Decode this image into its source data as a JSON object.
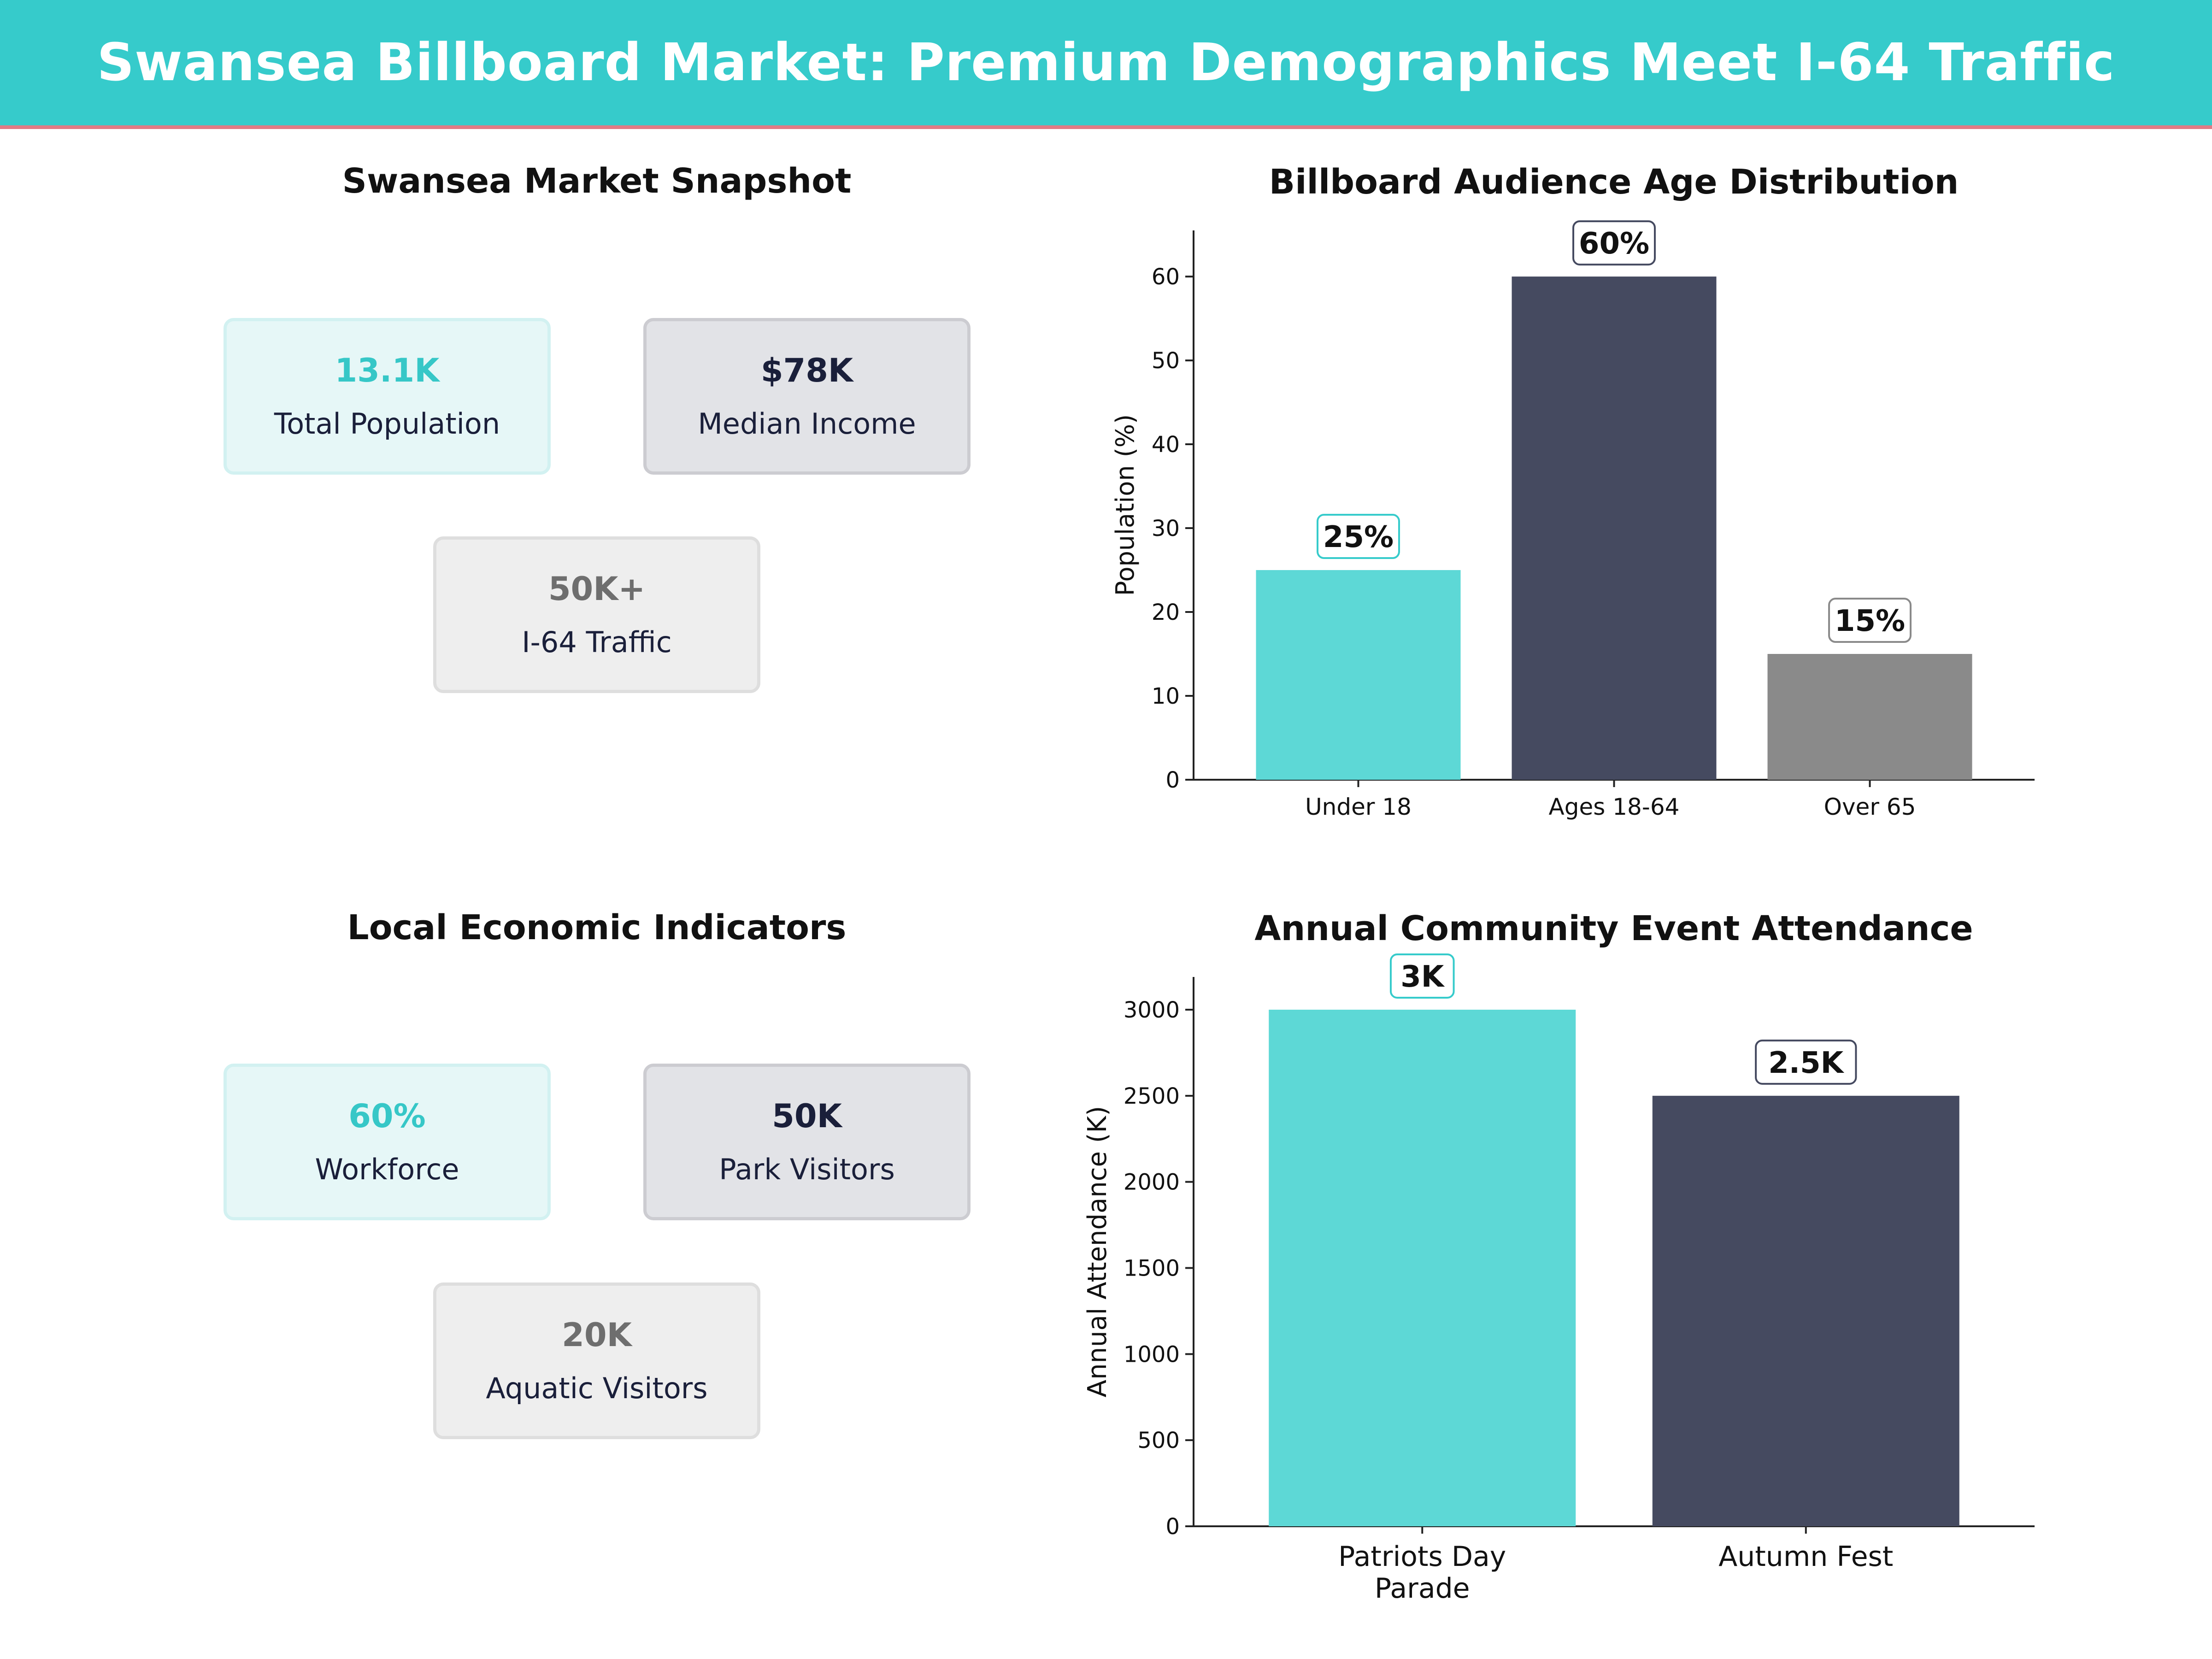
{
  "header": {
    "title": "Swansea Billboard Market: Premium Demographics Meet I-64 Traffic"
  },
  "snapshot": {
    "title": "Swansea Market Snapshot",
    "cards": [
      {
        "value": "13.1K",
        "label": "Total Population"
      },
      {
        "value": "$78K",
        "label": "Median Income"
      },
      {
        "value": "50K+",
        "label": "I-64 Traffic"
      }
    ]
  },
  "economic": {
    "title": "Local Economic Indicators",
    "cards": [
      {
        "value": "60%",
        "label": "Workforce"
      },
      {
        "value": "50K",
        "label": "Park Visitors"
      },
      {
        "value": "20K",
        "label": "Aquatic Visitors"
      }
    ]
  },
  "colors": {
    "teal": "#5DD8D6",
    "navy": "#454A60",
    "gray": "#8A8A8A",
    "banner": "#36CBCB",
    "accent_line": "#E07A85"
  },
  "chart_data": [
    {
      "type": "bar",
      "title": "Billboard Audience Age Distribution",
      "xlabel": "",
      "ylabel": "Population (%)",
      "categories": [
        "Under 18",
        "Ages 18-64",
        "Over 65"
      ],
      "values": [
        25,
        60,
        15
      ],
      "data_labels": [
        "25%",
        "60%",
        "15%"
      ],
      "bar_colors": [
        "#5DD8D6",
        "#454A60",
        "#8A8A8A"
      ],
      "label_border_colors": [
        "#36CBCB",
        "#454A60",
        "#8A8A8A"
      ],
      "yticks": [
        0,
        10,
        20,
        30,
        40,
        50,
        60
      ],
      "ylim": [
        0,
        65.5
      ],
      "grid": false
    },
    {
      "type": "bar",
      "title": "Annual Community Event Attendance",
      "xlabel": "",
      "ylabel": "Annual Attendance (K)",
      "categories": [
        "Patriots Day Parade",
        "Autumn Fest"
      ],
      "category_lines": [
        [
          "Patriots Day",
          "Parade"
        ],
        [
          "Autumn Fest"
        ]
      ],
      "values": [
        3000,
        2500
      ],
      "data_labels": [
        "3K",
        "2.5K"
      ],
      "bar_colors": [
        "#5DD8D6",
        "#454A60"
      ],
      "label_border_colors": [
        "#36CBCB",
        "#454A60"
      ],
      "yticks": [
        0,
        500,
        1000,
        1500,
        2000,
        2500,
        3000
      ],
      "ylim": [
        0,
        3190
      ],
      "grid": false
    }
  ]
}
